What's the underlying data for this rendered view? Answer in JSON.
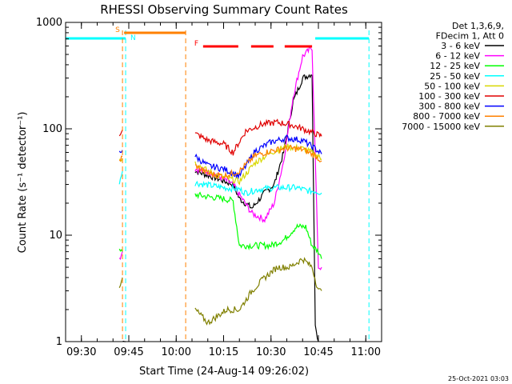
{
  "chart_data": {
    "type": "line",
    "title": "RHESSI Observing Summary Count Rates",
    "xlabel": "Start Time (24-Aug-14 09:26:02)",
    "ylabel": "Count Rate (s⁻¹ detector⁻¹)",
    "y_scale": "log",
    "ylim": [
      1,
      1000
    ],
    "xlim": [
      "09:25",
      "11:05"
    ],
    "x_ticks": [
      "09:30",
      "09:45",
      "10:00",
      "10:15",
      "10:30",
      "10:45",
      "11:00"
    ],
    "y_ticks": [
      "1",
      "10",
      "100",
      "1000"
    ],
    "timestamp": "25-Oct-2021 03:03",
    "legend_title": [
      "Det 1,3,6,9,",
      "FDecim 1, Att 0"
    ],
    "legend_position": "right",
    "flags": [
      {
        "label": "S",
        "color": "#ff8000",
        "start": "09:43",
        "end": "10:03"
      },
      {
        "label": "N",
        "color": "#00ffff",
        "start": "09:44",
        "end": "09:44"
      },
      {
        "label": "F",
        "color": "#ff0000",
        "start": "10:08",
        "end": "10:43"
      }
    ],
    "night_bars": [
      {
        "start": "09:25",
        "end": "09:44"
      },
      {
        "start": "10:44",
        "end": "11:01"
      }
    ],
    "saa_markers": {
      "times": [
        "09:43",
        "10:03"
      ],
      "color": "#ff8000"
    },
    "night_markers": {
      "times": [
        "09:44",
        "11:01"
      ],
      "color": "#00ffff"
    },
    "series": [
      {
        "name": "3 - 6 keV",
        "color": "#000000",
        "x": [
          "09:43",
          "09:44",
          "10:06",
          "10:12",
          "10:18",
          "10:20",
          "10:24",
          "10:28",
          "10:31",
          "10:34",
          "10:37",
          "10:40",
          "10:43",
          "10:44",
          "10:45"
        ],
        "values": [
          1,
          1,
          40,
          35,
          30,
          22,
          18,
          25,
          30,
          60,
          180,
          300,
          330,
          1.5,
          1
        ]
      },
      {
        "name": "6 - 12 keV",
        "color": "#ff00ff",
        "x": [
          "09:42",
          "09:43",
          "10:06",
          "10:12",
          "10:18",
          "10:20",
          "10:24",
          "10:28",
          "10:31",
          "10:34",
          "10:37",
          "10:40",
          "10:43",
          "10:45",
          "10:46"
        ],
        "values": [
          6,
          7,
          42,
          38,
          30,
          24,
          16,
          14,
          20,
          50,
          200,
          480,
          580,
          5,
          5
        ]
      },
      {
        "name": "12 - 25 keV",
        "color": "#00ff00",
        "x": [
          "09:42",
          "09:43",
          "10:06",
          "10:10",
          "10:15",
          "10:18",
          "10:20",
          "10:23",
          "10:27",
          "10:30",
          "10:34",
          "10:38",
          "10:41",
          "10:43",
          "10:45",
          "10:46"
        ],
        "values": [
          7,
          7,
          24,
          23,
          22,
          21,
          8,
          8,
          8,
          8,
          9,
          12,
          12,
          8,
          7,
          6
        ]
      },
      {
        "name": "25 - 50 keV",
        "color": "#00ffff",
        "x": [
          "09:42",
          "09:43",
          "10:06",
          "10:15",
          "10:20",
          "10:22",
          "10:26",
          "10:32",
          "10:38",
          "10:42",
          "10:44",
          "10:46"
        ],
        "values": [
          32,
          40,
          31,
          28,
          27,
          25,
          27,
          28,
          28,
          26,
          26,
          25
        ]
      },
      {
        "name": "50 - 100 keV",
        "color": "#d8d800",
        "x": [
          "09:42",
          "09:43",
          "10:06",
          "10:10",
          "10:15",
          "10:20",
          "10:25",
          "10:30",
          "10:35",
          "10:40",
          "10:44",
          "10:46"
        ],
        "values": [
          52,
          53,
          48,
          40,
          35,
          32,
          48,
          60,
          68,
          65,
          58,
          52
        ]
      },
      {
        "name": "100 - 300 keV",
        "color": "#e00000",
        "x": [
          "09:42",
          "09:43",
          "10:06",
          "10:10",
          "10:15",
          "10:18",
          "10:22",
          "10:27",
          "10:32",
          "10:36",
          "10:40",
          "10:44",
          "10:46"
        ],
        "values": [
          90,
          98,
          90,
          78,
          72,
          60,
          95,
          110,
          115,
          110,
          100,
          90,
          85
        ]
      },
      {
        "name": "300 - 800 keV",
        "color": "#0000ff",
        "x": [
          "09:42",
          "09:43",
          "10:06",
          "10:10",
          "10:15",
          "10:20",
          "10:25",
          "10:30",
          "10:35",
          "10:40",
          "10:44",
          "10:46"
        ],
        "values": [
          62,
          63,
          55,
          45,
          42,
          36,
          62,
          75,
          82,
          78,
          65,
          58
        ]
      },
      {
        "name": "800 - 7000 keV",
        "color": "#ff8000",
        "x": [
          "09:42",
          "09:43",
          "10:06",
          "10:10",
          "10:15",
          "10:20",
          "10:25",
          "10:30",
          "10:35",
          "10:40",
          "10:44",
          "10:46"
        ],
        "values": [
          50,
          55,
          45,
          38,
          36,
          40,
          56,
          62,
          66,
          64,
          56,
          50
        ]
      },
      {
        "name": "7000 - 15000 keV",
        "color": "#808000",
        "x": [
          "09:42",
          "09:43",
          "10:06",
          "10:10",
          "10:16",
          "10:20",
          "10:24",
          "10:28",
          "10:32",
          "10:36",
          "10:40",
          "10:43",
          "10:45",
          "10:46"
        ],
        "values": [
          3,
          4,
          2,
          1.5,
          2,
          2,
          3,
          4,
          5,
          5,
          6,
          5,
          3,
          3
        ]
      }
    ]
  }
}
